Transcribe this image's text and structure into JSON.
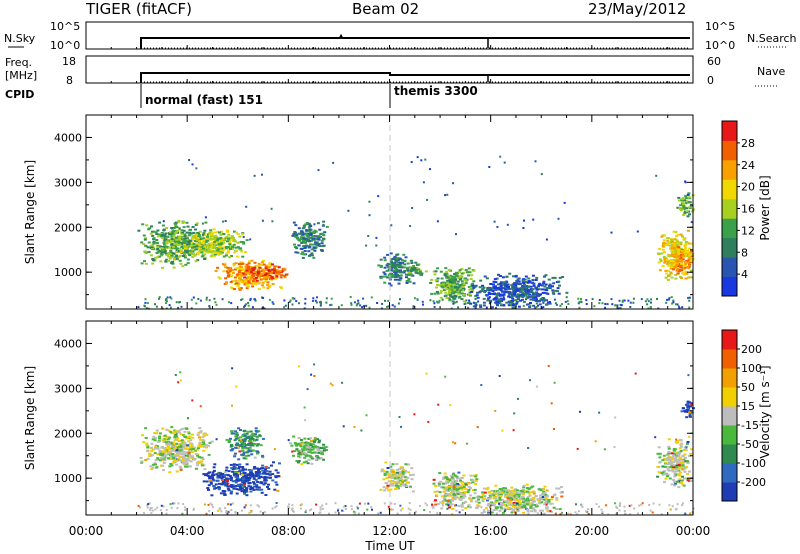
{
  "header": {
    "radar": "TIGER (fitACF)",
    "beam": "Beam 02",
    "date": "23/May/2012"
  },
  "strips": {
    "nsky_label": "N.Sky",
    "nsky_ticks": [
      "10^5",
      "10^0"
    ],
    "nsearch_label": "N.Search",
    "nsearch_ticks": [
      "10^5",
      "10^0"
    ],
    "freq_label": [
      "Freq.",
      "[MHz]"
    ],
    "freq_ticks": [
      "18",
      "8"
    ],
    "nave_label": "Nave",
    "nave_ticks": [
      "60",
      "0"
    ],
    "cpid_label": "CPID",
    "cpid_entries": [
      {
        "start": "02:00",
        "label": "normal (fast) 151"
      },
      {
        "start": "12:00",
        "label": "themis 3300"
      }
    ]
  },
  "panels": {
    "ylabel": "Slant Range [km]",
    "yticks": [
      "1000",
      "2000",
      "3000",
      "4000"
    ],
    "xticks": [
      "00:00",
      "04:00",
      "08:00",
      "12:00",
      "16:00",
      "20:00",
      "00:00"
    ],
    "xlabel": "Time UT"
  },
  "colorbars": {
    "power": {
      "label": "Power [dB]",
      "ticks": [
        "4",
        "8",
        "12",
        "16",
        "20",
        "24",
        "28"
      ],
      "colors": [
        "#1838e0",
        "#2855b0",
        "#2f7f5f",
        "#3aa04a",
        "#a8d020",
        "#f0d800",
        "#f8a000",
        "#f06000",
        "#e81818"
      ]
    },
    "velocity": {
      "label": "Velocity [m s⁻¹]",
      "ticks": [
        "200",
        "100",
        "50",
        "15",
        "-15",
        "-50",
        "-100",
        "-200"
      ],
      "colors": [
        "#1e3cb4",
        "#2e6ac0",
        "#2f8a50",
        "#49b83c",
        "#bdbdbd",
        "#f0d000",
        "#f0a000",
        "#f06000",
        "#e81818"
      ]
    }
  },
  "chart_data": [
    {
      "type": "heatmap",
      "name": "Power",
      "xlabel": "Time UT",
      "ylabel": "Slant Range [km]",
      "xlim": [
        "00:00",
        "24:00"
      ],
      "ylim": [
        180,
        4500
      ],
      "colorbar_label": "Power [dB]",
      "colorbar_range": [
        0,
        32
      ],
      "regions": [
        {
          "t": [
            2.0,
            5.0
          ],
          "range_km": [
            1100,
            2200
          ],
          "level": 12
        },
        {
          "t": [
            3.5,
            6.5
          ],
          "range_km": [
            1300,
            2000
          ],
          "level": 16
        },
        {
          "t": [
            5.0,
            7.8
          ],
          "range_km": [
            600,
            1300
          ],
          "level": 24
        },
        {
          "t": [
            6.0,
            8.0
          ],
          "range_km": [
            800,
            1200
          ],
          "level": 28
        },
        {
          "t": [
            8.0,
            9.5
          ],
          "range_km": [
            1300,
            2200
          ],
          "level": 8
        },
        {
          "t": [
            11.5,
            13.0
          ],
          "range_km": [
            700,
            1500
          ],
          "level": 8
        },
        {
          "t": [
            12.5,
            13.5
          ],
          "range_km": [
            900,
            1200
          ],
          "level": 12
        },
        {
          "t": [
            13.5,
            15.5
          ],
          "range_km": [
            300,
            1200
          ],
          "level": 12
        },
        {
          "t": [
            15.0,
            19.0
          ],
          "range_km": [
            200,
            1000
          ],
          "level": 4
        },
        {
          "t": [
            22.5,
            24.0
          ],
          "range_km": [
            800,
            2000
          ],
          "level": 20
        },
        {
          "t": [
            23.0,
            24.0
          ],
          "range_km": [
            900,
            1600
          ],
          "level": 24
        },
        {
          "t": [
            23.3,
            24.0
          ],
          "range_km": [
            2200,
            2800
          ],
          "level": 12
        }
      ]
    },
    {
      "type": "heatmap",
      "name": "Velocity",
      "xlabel": "Time UT",
      "ylabel": "Slant Range [km]",
      "xlim": [
        "00:00",
        "24:00"
      ],
      "ylim": [
        180,
        4500
      ],
      "colorbar_label": "Velocity [m s⁻¹]",
      "colorbar_range": [
        -250,
        250
      ],
      "regions": [
        {
          "t": [
            2.0,
            5.0
          ],
          "range_km": [
            1100,
            2200
          ],
          "level": 0
        },
        {
          "t": [
            4.5,
            7.8
          ],
          "range_km": [
            600,
            1400
          ],
          "level": -200
        },
        {
          "t": [
            5.5,
            7.0
          ],
          "range_km": [
            1400,
            2200
          ],
          "level": -100
        },
        {
          "t": [
            8.0,
            9.5
          ],
          "range_km": [
            1300,
            2000
          ],
          "level": -50
        },
        {
          "t": [
            11.5,
            13.0
          ],
          "range_km": [
            700,
            1400
          ],
          "level": 0
        },
        {
          "t": [
            13.5,
            15.5
          ],
          "range_km": [
            300,
            1200
          ],
          "level": 0
        },
        {
          "t": [
            15.0,
            19.0
          ],
          "range_km": [
            200,
            900
          ],
          "level": 0
        },
        {
          "t": [
            22.5,
            24.0
          ],
          "range_km": [
            800,
            1900
          ],
          "level": 0
        },
        {
          "t": [
            23.5,
            24.0
          ],
          "range_km": [
            2300,
            2800
          ],
          "level": -200
        }
      ]
    }
  ]
}
